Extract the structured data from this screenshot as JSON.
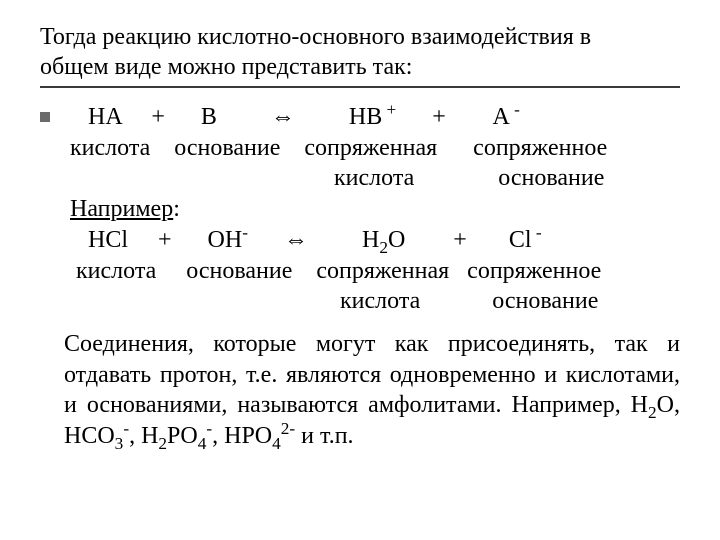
{
  "colors": {
    "background": "#ffffff",
    "text": "#000000",
    "underline": "#3a3a3a",
    "bullet": "#6b6b6b"
  },
  "typography": {
    "font_family": "Times New Roman",
    "title_fontsize_pt": 18,
    "body_fontsize_pt": 18
  },
  "title": {
    "line1": "Тогда реакцию кислотно-основного взаимодействия в",
    "line2": "общем виде можно представить так:"
  },
  "reaction_general": {
    "line1_parts": {
      "p1": "    HA     +      B         ",
      "arrow": "⇔",
      "p2": "         HB",
      "sup1": " +",
      "p3": "      +        A",
      "sup2": " -"
    },
    "line2": " кислота    основание    сопряженная      сопряженное",
    "line3": "                                             кислота              основание"
  },
  "example_label": "Например",
  "reaction_example": {
    "line1_parts": {
      "p1": "    HCl     +      OH",
      "sup1": "-",
      "p2": "      ",
      "arrow": "⇔",
      "p3": "         H",
      "sub1": "2",
      "p4": "O        +       Cl",
      "sup2": " -"
    },
    "line2": "  кислота     основание    сопряженная   сопряженное",
    "line3": "                                              кислота            основание"
  },
  "paragraph": {
    "t1": "Соединения, которые могут как присоединять, так и отдавать протон, т.е. являются одновременно и кислотами, и основаниями, называются амфолитами. Например, H",
    "s1": "2",
    "t2": "O, HCO",
    "s2": "3",
    "sup1": "-",
    "t3": ", H",
    "s3": "2",
    "t4": "PO",
    "s4": "4",
    "sup2": "-",
    "t5": ", HPO",
    "s5": "4",
    "sup3": "2-",
    "t6": " и т.п."
  }
}
